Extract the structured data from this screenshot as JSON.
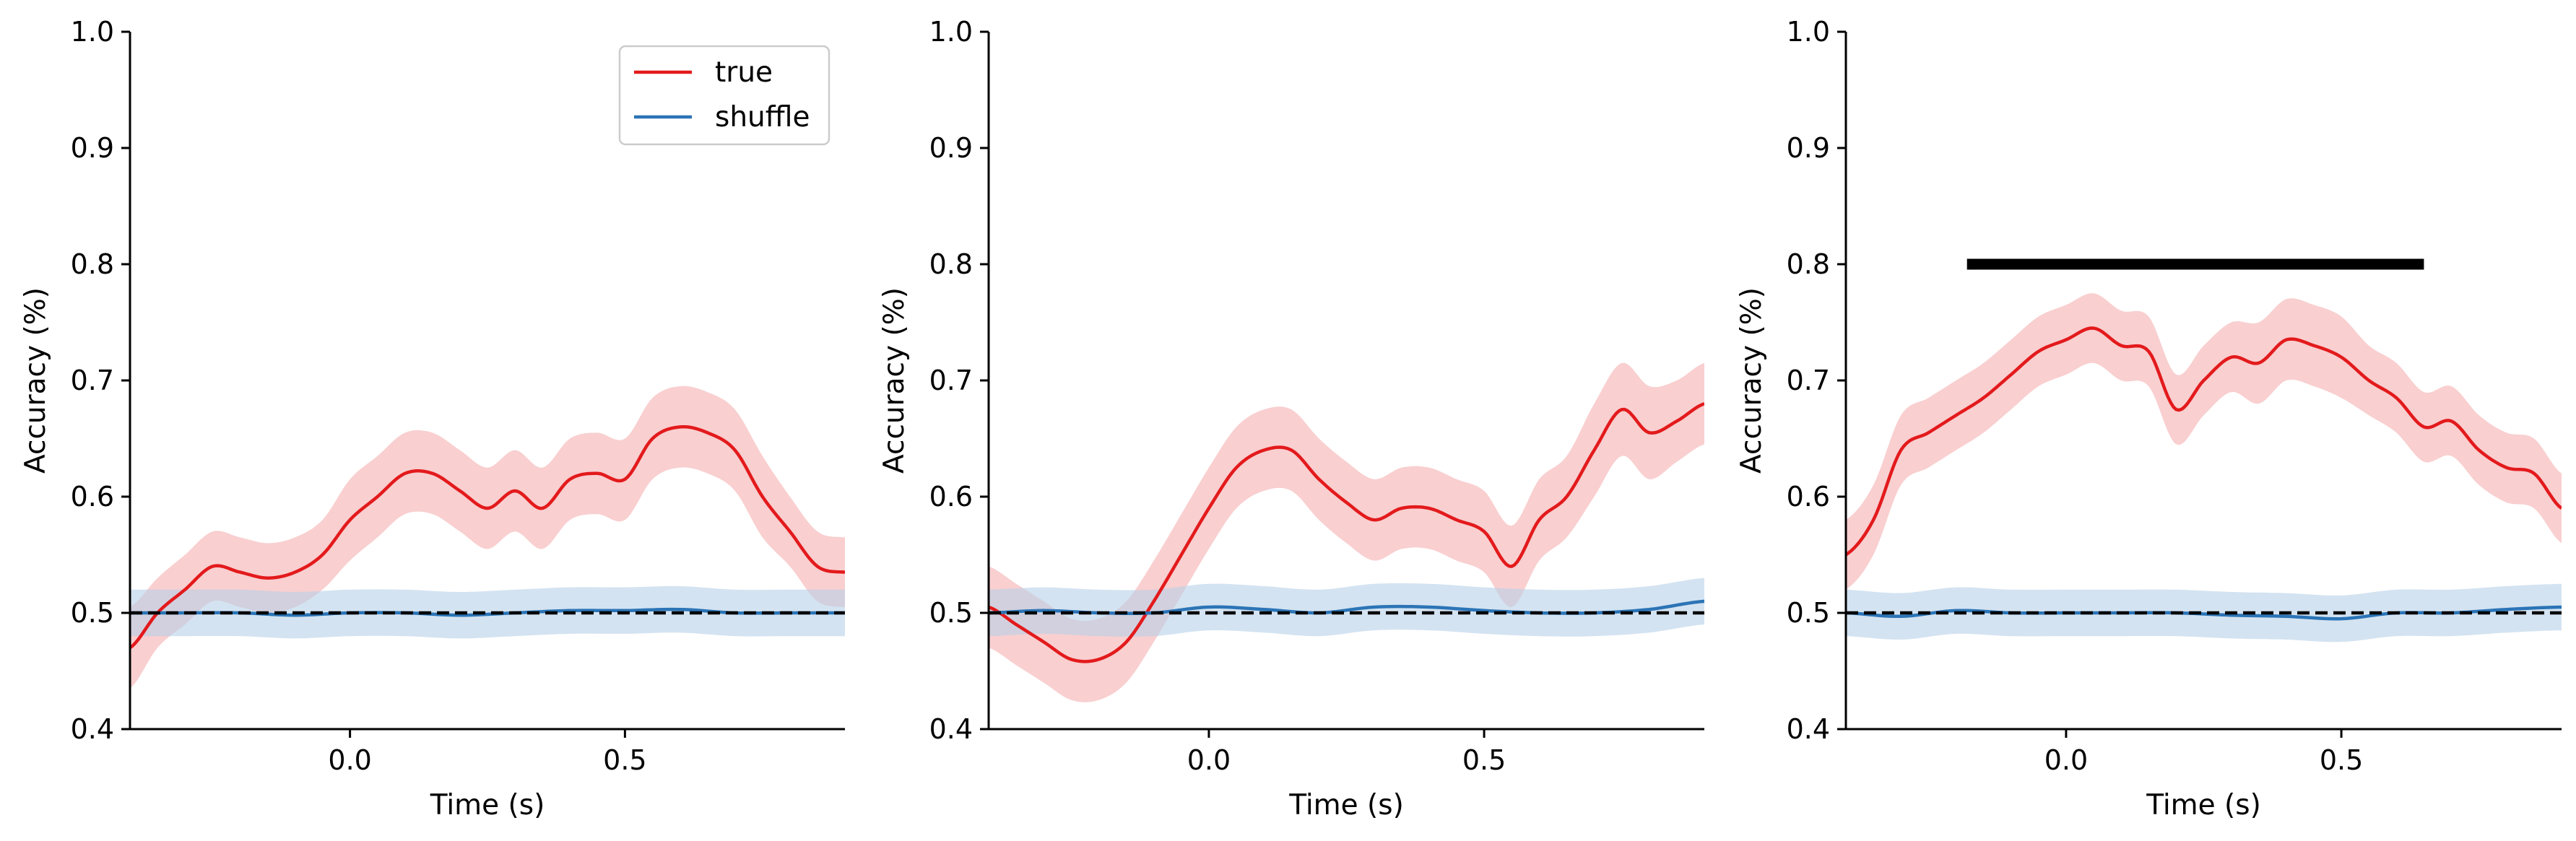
{
  "colors": {
    "true_line": "#e31a1c",
    "true_band": "#f4a8aa",
    "shuffle_line": "#2b74b6",
    "shuffle_band": "#b7d0e8",
    "chance": "#000000",
    "significance_bar": "#000000"
  },
  "legend": {
    "placement": "top-right",
    "panel": 0,
    "items": [
      "true",
      "shuffle"
    ]
  },
  "chart_data": [
    {
      "type": "line",
      "xlabel": "Time (s)",
      "ylabel": "Accuracy (%)",
      "xlim": [
        -0.4,
        0.9
      ],
      "ylim": [
        0.4,
        1.0
      ],
      "xticks": [
        "0.0",
        "0.5"
      ],
      "yticks": [
        "0.4",
        "0.5",
        "0.6",
        "0.7",
        "0.8",
        "0.9",
        "1.0"
      ],
      "chance_level": 0.5,
      "series": [
        {
          "name": "true",
          "x": [
            -0.4,
            -0.35,
            -0.3,
            -0.25,
            -0.2,
            -0.15,
            -0.1,
            -0.05,
            0.0,
            0.05,
            0.1,
            0.15,
            0.2,
            0.25,
            0.3,
            0.35,
            0.4,
            0.45,
            0.5,
            0.55,
            0.6,
            0.65,
            0.7,
            0.75,
            0.8,
            0.85,
            0.9
          ],
          "y": [
            0.47,
            0.5,
            0.52,
            0.54,
            0.535,
            0.53,
            0.535,
            0.55,
            0.58,
            0.6,
            0.62,
            0.62,
            0.605,
            0.59,
            0.605,
            0.59,
            0.615,
            0.62,
            0.615,
            0.65,
            0.66,
            0.655,
            0.64,
            0.6,
            0.57,
            0.54,
            0.535
          ],
          "band": [
            0.035,
            0.03,
            0.03,
            0.03,
            0.03,
            0.03,
            0.03,
            0.03,
            0.035,
            0.035,
            0.035,
            0.035,
            0.035,
            0.035,
            0.035,
            0.035,
            0.035,
            0.035,
            0.035,
            0.035,
            0.035,
            0.035,
            0.035,
            0.035,
            0.03,
            0.03,
            0.03
          ]
        },
        {
          "name": "shuffle",
          "x": [
            -0.4,
            -0.3,
            -0.2,
            -0.1,
            0.0,
            0.1,
            0.2,
            0.3,
            0.4,
            0.5,
            0.6,
            0.7,
            0.8,
            0.9
          ],
          "y": [
            0.5,
            0.5,
            0.5,
            0.498,
            0.5,
            0.5,
            0.498,
            0.5,
            0.502,
            0.502,
            0.503,
            0.5,
            0.5,
            0.5
          ],
          "band": [
            0.02,
            0.02,
            0.02,
            0.02,
            0.02,
            0.02,
            0.02,
            0.02,
            0.02,
            0.02,
            0.02,
            0.02,
            0.02,
            0.02
          ]
        }
      ]
    },
    {
      "type": "line",
      "xlabel": "Time (s)",
      "ylabel": "Accuracy (%)",
      "xlim": [
        -0.4,
        0.9
      ],
      "ylim": [
        0.4,
        1.0
      ],
      "xticks": [
        "0.0",
        "0.5"
      ],
      "yticks": [
        "0.4",
        "0.5",
        "0.6",
        "0.7",
        "0.8",
        "0.9",
        "1.0"
      ],
      "chance_level": 0.5,
      "series": [
        {
          "name": "true",
          "x": [
            -0.4,
            -0.35,
            -0.3,
            -0.25,
            -0.2,
            -0.15,
            -0.1,
            -0.05,
            0.0,
            0.05,
            0.1,
            0.15,
            0.2,
            0.25,
            0.3,
            0.35,
            0.4,
            0.45,
            0.5,
            0.55,
            0.6,
            0.65,
            0.7,
            0.75,
            0.8,
            0.85,
            0.9
          ],
          "y": [
            0.505,
            0.49,
            0.475,
            0.46,
            0.46,
            0.475,
            0.51,
            0.55,
            0.59,
            0.625,
            0.64,
            0.64,
            0.615,
            0.595,
            0.58,
            0.59,
            0.59,
            0.58,
            0.57,
            0.54,
            0.58,
            0.6,
            0.64,
            0.675,
            0.655,
            0.665,
            0.68
          ],
          "band": [
            0.035,
            0.035,
            0.035,
            0.035,
            0.035,
            0.035,
            0.035,
            0.035,
            0.035,
            0.035,
            0.035,
            0.035,
            0.035,
            0.035,
            0.035,
            0.035,
            0.035,
            0.035,
            0.035,
            0.035,
            0.035,
            0.035,
            0.04,
            0.04,
            0.04,
            0.035,
            0.035
          ]
        },
        {
          "name": "shuffle",
          "x": [
            -0.4,
            -0.3,
            -0.2,
            -0.1,
            0.0,
            0.1,
            0.2,
            0.3,
            0.4,
            0.5,
            0.6,
            0.7,
            0.8,
            0.9
          ],
          "y": [
            0.5,
            0.502,
            0.5,
            0.5,
            0.505,
            0.503,
            0.5,
            0.505,
            0.505,
            0.502,
            0.5,
            0.5,
            0.503,
            0.51
          ],
          "band": [
            0.02,
            0.02,
            0.02,
            0.02,
            0.02,
            0.02,
            0.02,
            0.02,
            0.02,
            0.02,
            0.02,
            0.02,
            0.02,
            0.02
          ]
        }
      ]
    },
    {
      "type": "line",
      "xlabel": "Time (s)",
      "ylabel": "Accuracy (%)",
      "xlim": [
        -0.4,
        0.9
      ],
      "ylim": [
        0.4,
        1.0
      ],
      "xticks": [
        "0.0",
        "0.5"
      ],
      "yticks": [
        "0.4",
        "0.5",
        "0.6",
        "0.7",
        "0.8",
        "0.9",
        "1.0"
      ],
      "chance_level": 0.5,
      "significance_bar": {
        "x": [
          -0.18,
          0.65
        ],
        "y": 0.8
      },
      "series": [
        {
          "name": "true",
          "x": [
            -0.4,
            -0.35,
            -0.3,
            -0.25,
            -0.2,
            -0.15,
            -0.1,
            -0.05,
            0.0,
            0.05,
            0.1,
            0.15,
            0.2,
            0.25,
            0.3,
            0.35,
            0.4,
            0.45,
            0.5,
            0.55,
            0.6,
            0.65,
            0.7,
            0.75,
            0.8,
            0.85,
            0.9
          ],
          "y": [
            0.55,
            0.58,
            0.64,
            0.655,
            0.67,
            0.685,
            0.705,
            0.725,
            0.735,
            0.745,
            0.73,
            0.725,
            0.675,
            0.7,
            0.72,
            0.715,
            0.735,
            0.73,
            0.72,
            0.7,
            0.685,
            0.66,
            0.665,
            0.64,
            0.625,
            0.62,
            0.59
          ],
          "band": [
            0.03,
            0.03,
            0.03,
            0.03,
            0.03,
            0.03,
            0.03,
            0.03,
            0.03,
            0.03,
            0.03,
            0.03,
            0.03,
            0.03,
            0.03,
            0.035,
            0.035,
            0.035,
            0.035,
            0.03,
            0.03,
            0.03,
            0.03,
            0.03,
            0.03,
            0.03,
            0.03
          ]
        },
        {
          "name": "shuffle",
          "x": [
            -0.4,
            -0.3,
            -0.2,
            -0.1,
            0.0,
            0.1,
            0.2,
            0.3,
            0.4,
            0.5,
            0.6,
            0.7,
            0.8,
            0.9
          ],
          "y": [
            0.5,
            0.497,
            0.502,
            0.5,
            0.5,
            0.5,
            0.5,
            0.498,
            0.497,
            0.495,
            0.5,
            0.5,
            0.503,
            0.505
          ],
          "band": [
            0.02,
            0.02,
            0.02,
            0.02,
            0.02,
            0.02,
            0.02,
            0.02,
            0.02,
            0.02,
            0.02,
            0.02,
            0.02,
            0.02
          ]
        }
      ]
    }
  ]
}
